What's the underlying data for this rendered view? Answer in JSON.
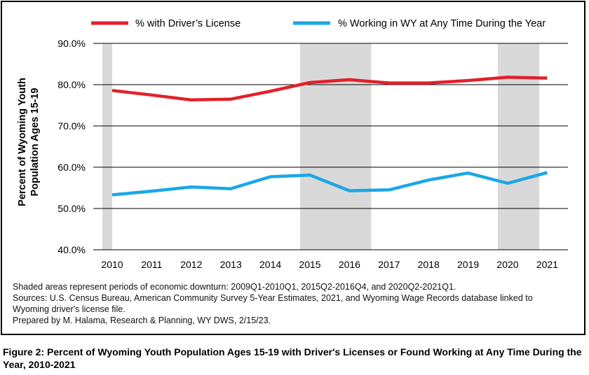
{
  "chart_data": {
    "type": "line",
    "categories": [
      "2010",
      "2011",
      "2012",
      "2013",
      "2014",
      "2015",
      "2016",
      "2017",
      "2018",
      "2019",
      "2020",
      "2021"
    ],
    "series": [
      {
        "name": "% with Driver’s License",
        "color": "#e3202a",
        "values": [
          78.6,
          77.5,
          76.3,
          76.5,
          78.4,
          80.5,
          81.2,
          80.4,
          80.4,
          81.0,
          81.8,
          81.6
        ]
      },
      {
        "name": "% Working in WY at Any Time During the Year",
        "color": "#1aa7e6",
        "values": [
          53.3,
          54.2,
          55.2,
          54.8,
          57.7,
          58.1,
          54.3,
          54.5,
          56.9,
          58.6,
          56.1,
          58.7
        ]
      }
    ],
    "ylabel": "Percent of Wyoming Youth Population Ages 15-19",
    "ylim": [
      40,
      90
    ],
    "yticks": [
      "40.0%",
      "50.0%",
      "60.0%",
      "70.0%",
      "80.0%",
      "90.0%"
    ],
    "yticks_values": [
      40,
      50,
      60,
      70,
      80,
      90
    ],
    "grid": true,
    "legend": "top",
    "shaded_periods": [
      {
        "label": "2009Q1-2010Q1",
        "from": 2009.75,
        "to": 2010.0
      },
      {
        "label": "2015Q2-2016Q4",
        "from": 2014.75,
        "to": 2016.55
      },
      {
        "label": "2020Q2-2021Q1",
        "from": 2019.75,
        "to": 2020.8
      }
    ]
  },
  "notes": {
    "line1": "Shaded areas represent periods of economic downturn: 2009Q1-2010Q1, 2015Q2-2016Q4, and 2020Q2-2021Q1.",
    "line2": "Sources: U.S. Census Bureau, American Community Survey 5-Year Estimates, 2021, and Wyoming Wage Records database linked to",
    "line3": "Wyoming driver's license file.",
    "line4": "Prepared by M. Halama, Research & Planning, WY DWS, 2/15/23."
  },
  "caption": "Figure 2: Percent of Wyoming Youth Population Ages 15-19 with Driver's Licenses or Found Working at Any Time During the Year, 2010-2021"
}
